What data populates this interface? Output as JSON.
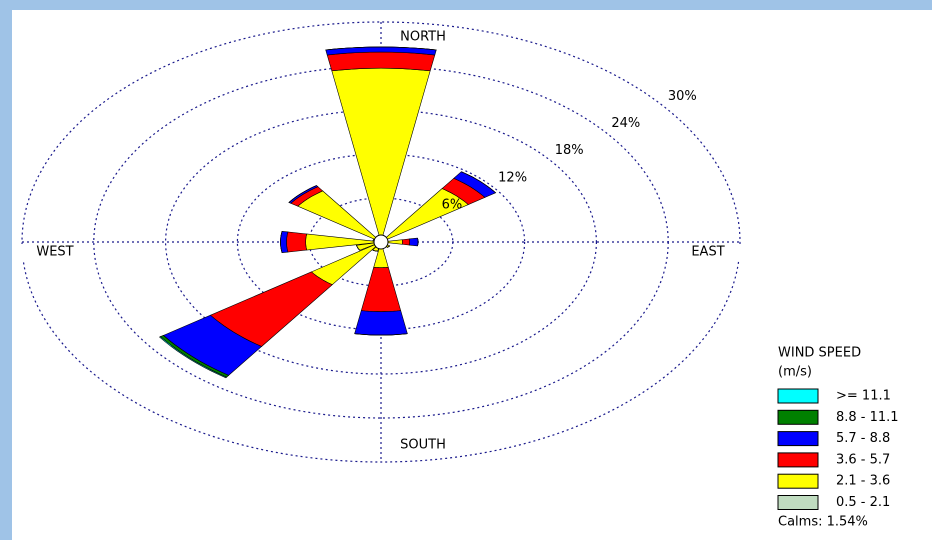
{
  "chart_data": {
    "type": "windrose",
    "x": [
      0,
      22.5,
      45,
      67.5,
      90,
      112.5,
      135,
      157.5,
      180,
      202.5,
      225,
      247.5,
      270,
      292.5,
      315,
      337.5
    ],
    "direction_labels": [
      "NORTH",
      "EAST",
      "SOUTH",
      "WEST"
    ],
    "rlim": [
      0,
      30
    ],
    "rticks": [
      {
        "value": 6,
        "label": "6%"
      },
      {
        "value": 12,
        "label": "12%"
      },
      {
        "value": 18,
        "label": "18%"
      },
      {
        "value": 24,
        "label": "24%"
      },
      {
        "value": 30,
        "label": "30%"
      }
    ],
    "legend_title": "WIND SPEED",
    "legend_subtitle": "(m/s)",
    "calms_label": "Calms: 1.54%",
    "series": [
      {
        "name": "0.5 - 2.1",
        "color": "#c0dcc0",
        "values": [
          0.2,
          0.1,
          0.2,
          0.1,
          0.1,
          0.1,
          0.1,
          0.1,
          0.2,
          0.1,
          0.2,
          0.1,
          0.2,
          0.1,
          0.2,
          0.1
        ]
      },
      {
        "name": "2.1 - 3.6",
        "color": "#ffff00",
        "values": [
          23.5,
          0.5,
          8.7,
          0.3,
          1.7,
          0.4,
          0.8,
          0.3,
          3.3,
          1.2,
          6.9,
          2.0,
          6.1,
          0.6,
          8.3,
          0.4
        ]
      },
      {
        "name": "3.6 - 5.7",
        "color": "#ff0000",
        "values": [
          2.2,
          0,
          1.7,
          0,
          0.6,
          0,
          0,
          0,
          6.0,
          0,
          10.3,
          0,
          1.6,
          0,
          0.7,
          0
        ]
      },
      {
        "name": "5.7 - 8.8",
        "color": "#0000ff",
        "values": [
          0.7,
          0,
          1.1,
          0,
          0.7,
          0,
          0,
          0,
          3.2,
          0,
          4.8,
          0,
          0.5,
          0,
          0.2,
          0
        ]
      },
      {
        "name": "8.8 - 11.1",
        "color": "#008000",
        "values": [
          0,
          0,
          0,
          0,
          0,
          0,
          0,
          0,
          0,
          0,
          0.3,
          0,
          0,
          0,
          0,
          0
        ]
      },
      {
        "name": ">= 11.1",
        "color": "#00ffff",
        "values": [
          0,
          0,
          0,
          0,
          0,
          0,
          0,
          0,
          0,
          0,
          0.1,
          0,
          0,
          0,
          0,
          0
        ]
      }
    ]
  }
}
